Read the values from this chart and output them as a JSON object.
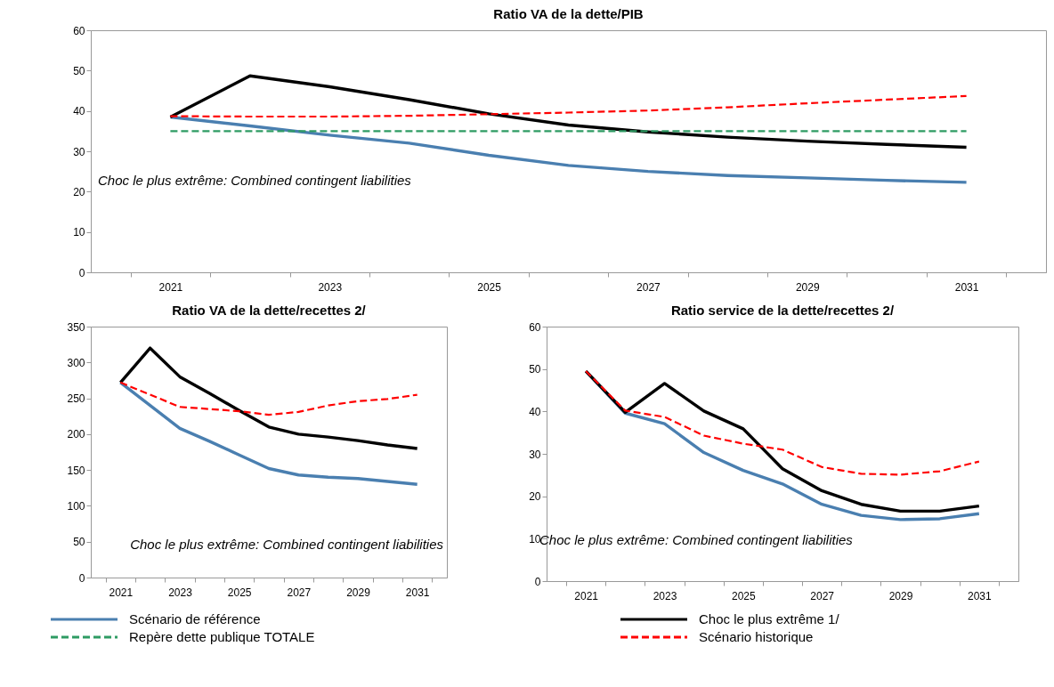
{
  "chart_data": [
    {
      "type": "line",
      "title": "Ratio VA de la dette/PIB",
      "categories": [
        "2021",
        null,
        "2023",
        null,
        "2025",
        null,
        "2027",
        null,
        "2029",
        null,
        "2031"
      ],
      "ylim": [
        0,
        60
      ],
      "yticks": [
        0,
        10,
        20,
        30,
        40,
        50,
        60
      ],
      "legend": "bottom",
      "annotations": [
        "Choc le plus extrême: Combined contingent liabilities"
      ],
      "series": [
        {
          "name": "Scénario de référence",
          "color": "#4a7fb0",
          "line_style": "solid",
          "values": [
            38.5,
            36.3,
            34.0,
            32.0,
            29.0,
            26.5,
            25.0,
            24.0,
            23.4,
            22.8,
            22.3
          ]
        },
        {
          "name": "Choc le plus extrême 1/",
          "color": "#000000",
          "line_style": "solid",
          "values": [
            38.5,
            48.7,
            46.0,
            42.8,
            39.3,
            36.5,
            34.8,
            33.5,
            32.5,
            31.7,
            31.0
          ]
        },
        {
          "name": "Repère dette publique TOTALE",
          "color": "#2e9b63",
          "line_style": "dashed",
          "values": [
            35,
            35,
            35,
            35,
            35,
            35,
            35,
            35,
            35,
            35,
            35
          ]
        },
        {
          "name": "Scénario historique",
          "color": "#ff0000",
          "line_style": "dashed",
          "values": [
            38.7,
            38.6,
            38.6,
            38.8,
            39.2,
            39.6,
            40.1,
            40.9,
            41.9,
            42.8,
            43.7
          ]
        }
      ]
    },
    {
      "type": "line",
      "title": "Ratio VA de la dette/recettes 2/",
      "categories": [
        "2021",
        null,
        "2023",
        null,
        "2025",
        null,
        "2027",
        null,
        "2029",
        null,
        "2031"
      ],
      "ylim": [
        0,
        350
      ],
      "yticks": [
        0,
        50,
        100,
        150,
        200,
        250,
        300,
        350
      ],
      "annotations": [
        "Choc le plus extrême: Combined contingent liabilities"
      ],
      "series": [
        {
          "color": "#4a7fb0",
          "line_style": "solid",
          "values": [
            272,
            240,
            208,
            190,
            171,
            152,
            143,
            140,
            138,
            134,
            130
          ]
        },
        {
          "color": "#000000",
          "line_style": "solid",
          "values": [
            272,
            320,
            280,
            257,
            233,
            210,
            200,
            196,
            191,
            185,
            180
          ]
        },
        {
          "color": "#ff0000",
          "line_style": "dashed",
          "values": [
            272,
            255,
            238,
            235,
            232,
            227,
            231,
            240,
            246,
            249,
            255
          ]
        }
      ]
    },
    {
      "type": "line",
      "title": "Ratio service de la dette/recettes 2/",
      "categories": [
        "2021",
        null,
        "2023",
        null,
        "2025",
        null,
        "2027",
        null,
        "2029",
        null,
        "2031"
      ],
      "ylim": [
        0,
        60
      ],
      "yticks": [
        0,
        10,
        20,
        30,
        40,
        50,
        60
      ],
      "annotations": [
        "Choc le plus extrême: Combined contingent liabilities"
      ],
      "series": [
        {
          "color": "#4a7fb0",
          "line_style": "solid",
          "values": [
            49.5,
            39.6,
            37.1,
            30.3,
            26.1,
            22.9,
            18.1,
            15.5,
            14.5,
            14.7,
            15.9
          ]
        },
        {
          "color": "#000000",
          "line_style": "solid",
          "values": [
            49.5,
            39.8,
            46.6,
            40.1,
            35.9,
            26.5,
            21.3,
            18.1,
            16.5,
            16.5,
            17.7
          ]
        },
        {
          "color": "#ff0000",
          "line_style": "dashed",
          "values": [
            49.5,
            40.2,
            38.7,
            34.3,
            32.4,
            31.0,
            26.9,
            25.3,
            25.1,
            25.9,
            28.2
          ]
        }
      ]
    }
  ]
}
